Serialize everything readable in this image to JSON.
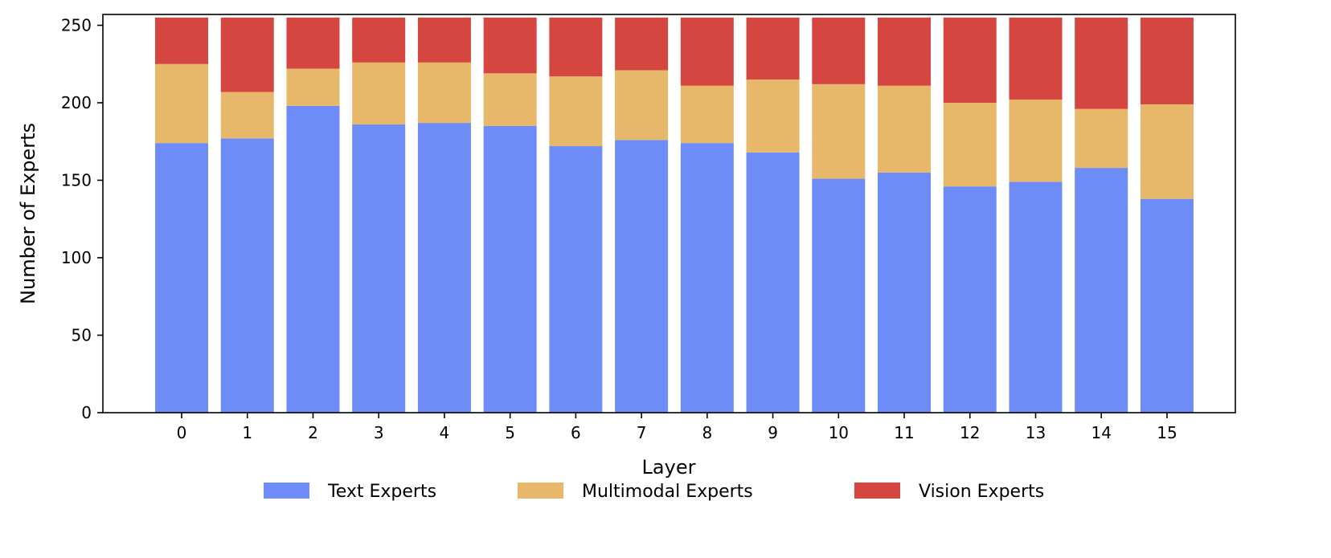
{
  "chart_data": {
    "type": "bar",
    "stacked": true,
    "xlabel": "Layer",
    "ylabel": "Number of Experts",
    "categories": [
      "0",
      "1",
      "2",
      "3",
      "4",
      "5",
      "6",
      "7",
      "8",
      "9",
      "10",
      "11",
      "12",
      "13",
      "14",
      "15"
    ],
    "ylim": [
      0,
      257
    ],
    "yticks": [
      0,
      50,
      100,
      150,
      200,
      250
    ],
    "grid": false,
    "legend_position": "bottom",
    "series": [
      {
        "name": "Text Experts",
        "color": "#6d8cf7",
        "values": [
          174,
          177,
          198,
          186,
          187,
          185,
          172,
          176,
          174,
          168,
          151,
          155,
          146,
          149,
          158,
          138
        ]
      },
      {
        "name": "Multimodal Experts",
        "color": "#e8b86a",
        "values": [
          51,
          30,
          24,
          40,
          39,
          34,
          45,
          45,
          37,
          47,
          61,
          56,
          54,
          53,
          38,
          61
        ]
      },
      {
        "name": "Vision Experts",
        "color": "#d64640",
        "values": [
          30,
          48,
          33,
          29,
          29,
          36,
          38,
          34,
          44,
          40,
          43,
          44,
          55,
          53,
          59,
          56
        ]
      }
    ]
  }
}
